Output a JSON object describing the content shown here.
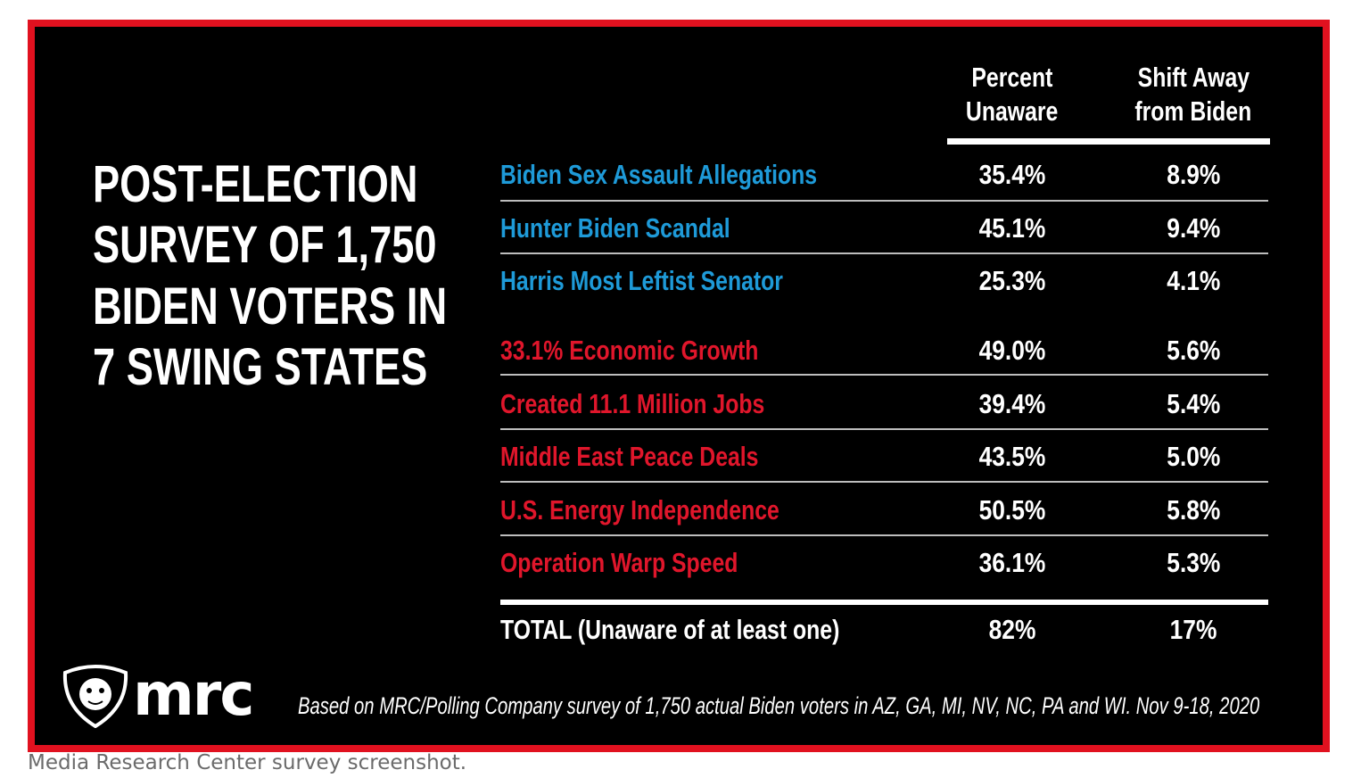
{
  "infographic": {
    "title_lines": [
      "POST-ELECTION",
      "SURVEY OF 1,750",
      "BIDEN VOTERS IN",
      "7 SWING STATES"
    ],
    "footnote": "Based on MRC/Polling Company survey of 1,750 actual Biden voters in AZ, GA, MI, NV, NC, PA and WI. Nov 9-18, 2020",
    "logo_text": "mrc",
    "colors": {
      "frame": "#e1111f",
      "background": "#000000",
      "negative_items": "#1e9ad8",
      "positive_items": "#e0162b",
      "text": "#ffffff"
    }
  },
  "chart_data": {
    "type": "table",
    "columns": [
      {
        "line1": "Percent",
        "line2": "Unaware"
      },
      {
        "line1": "Shift Away",
        "line2": "from Biden"
      }
    ],
    "rows": [
      {
        "label": "Biden Sex Assault Allegations",
        "color": "#1e9ad8",
        "unaware": "35.4%",
        "shift": "8.9%"
      },
      {
        "label": "Hunter Biden Scandal",
        "color": "#1e9ad8",
        "unaware": "45.1%",
        "shift": "9.4%"
      },
      {
        "label": "Harris Most Leftist Senator",
        "color": "#1e9ad8",
        "unaware": "25.3%",
        "shift": "4.1%"
      },
      {
        "label": "33.1% Economic Growth",
        "color": "#e0162b",
        "unaware": "49.0%",
        "shift": "5.6%"
      },
      {
        "label": "Created 11.1 Million Jobs",
        "color": "#e0162b",
        "unaware": "39.4%",
        "shift": "5.4%"
      },
      {
        "label": "Middle East Peace Deals",
        "color": "#e0162b",
        "unaware": "43.5%",
        "shift": "5.0%"
      },
      {
        "label": "U.S. Energy Independence",
        "color": "#e0162b",
        "unaware": "50.5%",
        "shift": "5.8%"
      },
      {
        "label": "Operation Warp Speed",
        "color": "#e0162b",
        "unaware": "36.1%",
        "shift": "5.3%"
      }
    ],
    "total": {
      "label_bold": "TOTAL",
      "label_rest": "(Unaware of at least one)",
      "unaware": "82%",
      "shift": "17%"
    }
  },
  "caption": "Media Research Center survey screenshot."
}
